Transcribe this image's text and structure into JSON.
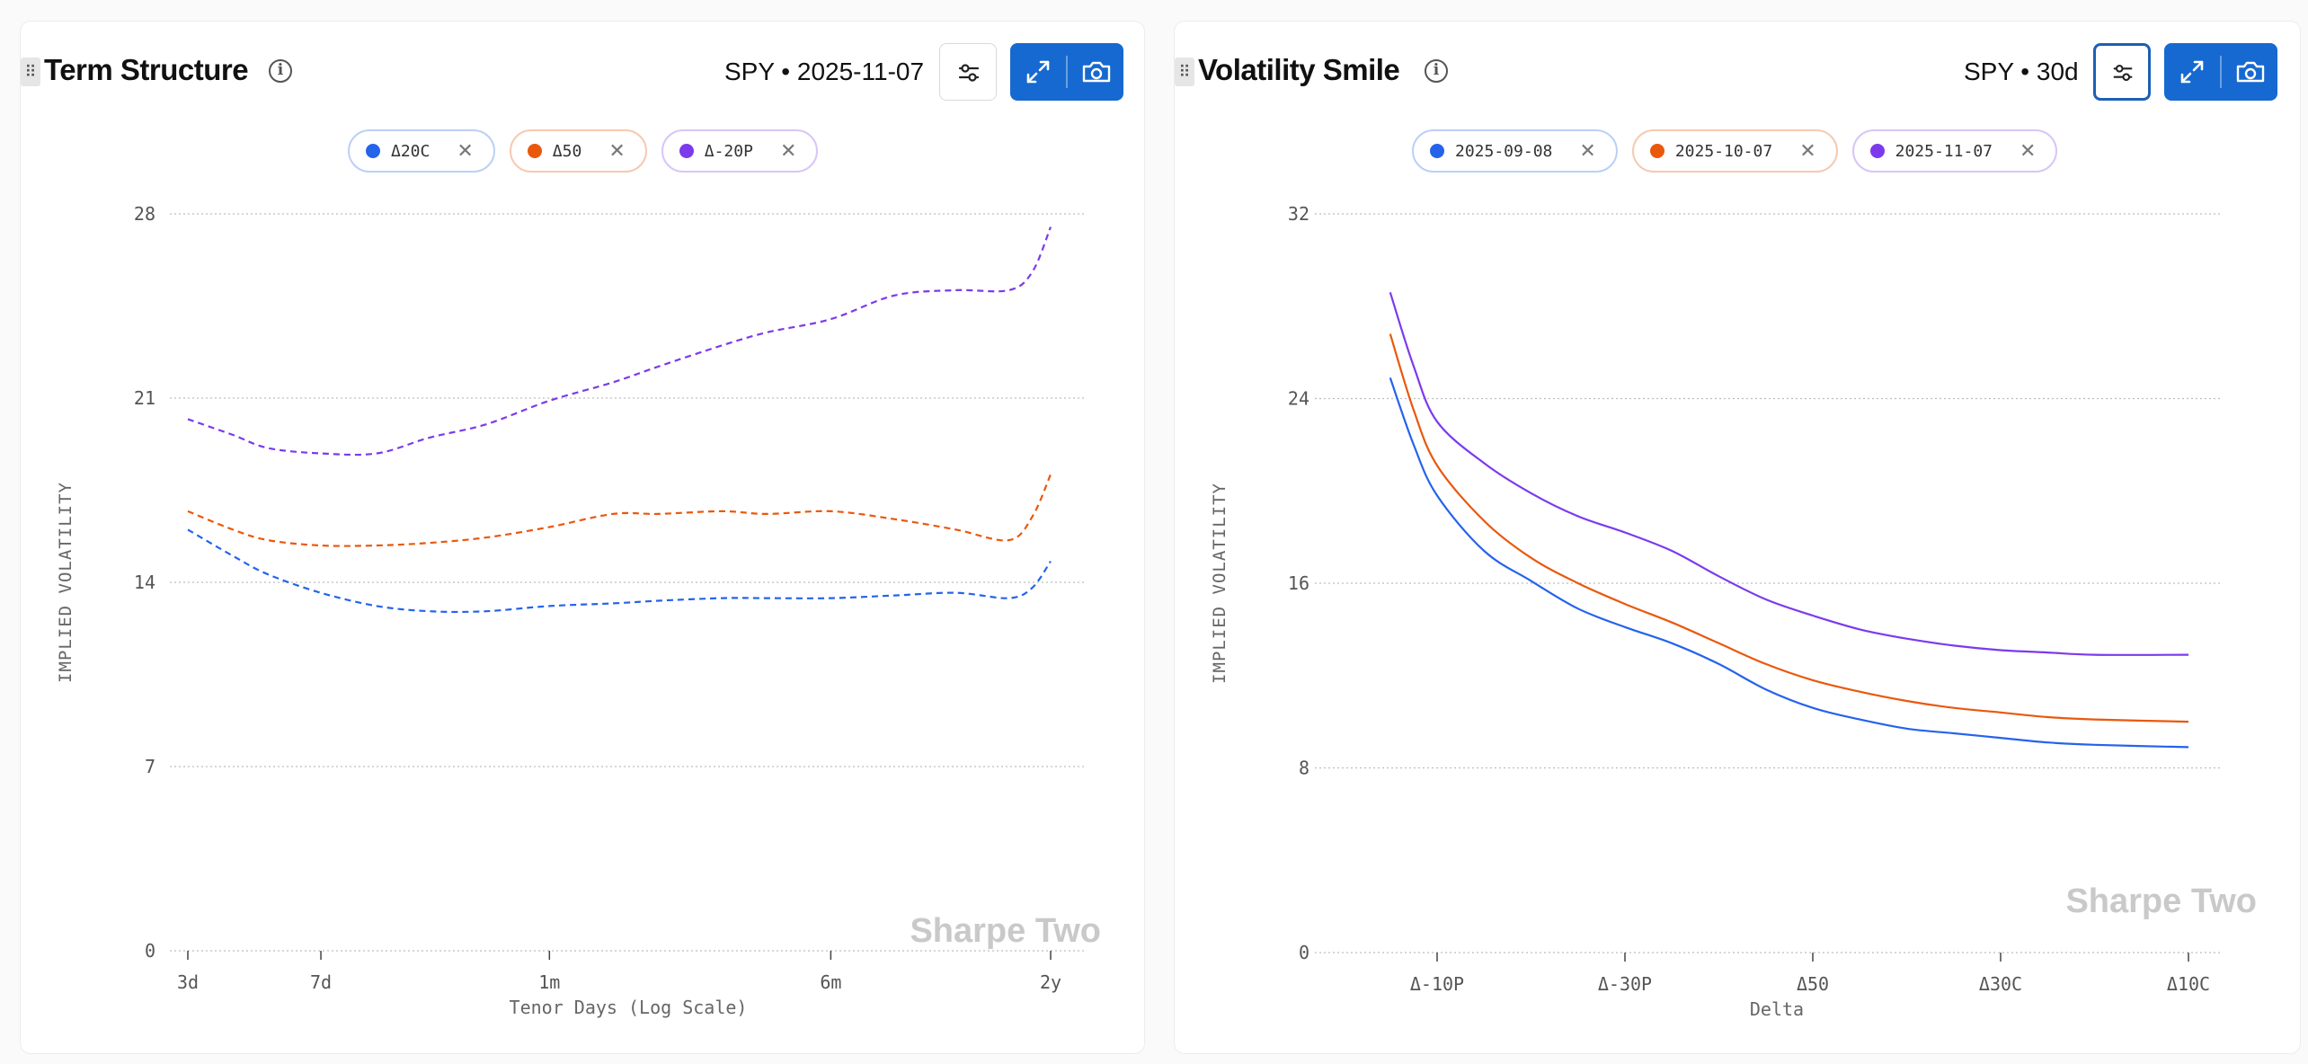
{
  "left_panel": {
    "title": "Term Structure",
    "ticker_label": "SPY • 2025-11-07",
    "legend": [
      {
        "label": "Δ20C",
        "color": "#2563eb"
      },
      {
        "label": "Δ50",
        "color": "#ea580c"
      },
      {
        "label": "Δ-20P",
        "color": "#7c3aed"
      }
    ],
    "watermark": "Sharpe Two"
  },
  "right_panel": {
    "title": "Volatility Smile",
    "ticker_label": "SPY • 30d",
    "legend": [
      {
        "label": "2025-09-08",
        "color": "#2563eb"
      },
      {
        "label": "2025-10-07",
        "color": "#ea580c"
      },
      {
        "label": "2025-11-07",
        "color": "#7c3aed"
      }
    ],
    "watermark": "Sharpe Two"
  },
  "chart_data": [
    {
      "type": "line",
      "title": "Term Structure",
      "xlabel": "Tenor Days (Log Scale)",
      "ylabel": "IMPLIED VOLATILITY",
      "x_scale": "log",
      "x_range": [
        3,
        730
      ],
      "x_ticks": [
        {
          "value": 3,
          "label": "3d"
        },
        {
          "value": 7,
          "label": "7d"
        },
        {
          "value": 30,
          "label": "1m"
        },
        {
          "value": 180,
          "label": "6m"
        },
        {
          "value": 730,
          "label": "2y"
        }
      ],
      "ylim": [
        0,
        28
      ],
      "y_ticks": [
        0,
        7,
        14,
        21,
        28
      ],
      "grid": true,
      "line_style": "dashed",
      "x": [
        3,
        4,
        5,
        7,
        10,
        14,
        20,
        30,
        45,
        60,
        90,
        120,
        180,
        270,
        400,
        560,
        650,
        730
      ],
      "series": [
        {
          "name": "Δ20C",
          "color": "#2563eb",
          "values": [
            16.0,
            15.0,
            14.3,
            13.6,
            13.1,
            12.9,
            12.9,
            13.1,
            13.2,
            13.3,
            13.4,
            13.4,
            13.4,
            13.5,
            13.6,
            13.4,
            13.8,
            14.8
          ]
        },
        {
          "name": "Δ50",
          "color": "#ea580c",
          "values": [
            16.7,
            16.0,
            15.6,
            15.4,
            15.4,
            15.5,
            15.7,
            16.1,
            16.6,
            16.6,
            16.7,
            16.6,
            16.7,
            16.4,
            16.0,
            15.6,
            16.5,
            18.1
          ]
        },
        {
          "name": "Δ-20P",
          "color": "#7c3aed",
          "values": [
            20.2,
            19.6,
            19.1,
            18.9,
            18.9,
            19.5,
            20.0,
            20.9,
            21.6,
            22.2,
            23.0,
            23.5,
            24.0,
            24.9,
            25.1,
            25.1,
            25.8,
            27.5
          ]
        }
      ]
    },
    {
      "type": "line",
      "title": "Volatility Smile",
      "xlabel": "Delta",
      "ylabel": "IMPLIED VOLATILITY",
      "x_range": [
        0,
        4
      ],
      "x_ticks": [
        {
          "value": 0,
          "label": "Δ-10P"
        },
        {
          "value": 1,
          "label": "Δ-30P"
        },
        {
          "value": 2,
          "label": "Δ50"
        },
        {
          "value": 3,
          "label": "Δ30C"
        },
        {
          "value": 4,
          "label": "Δ10C"
        }
      ],
      "ylim": [
        0,
        32
      ],
      "y_ticks": [
        0,
        8,
        16,
        24,
        32
      ],
      "grid": true,
      "line_style": "solid",
      "x": [
        -0.25,
        -0.125,
        0,
        0.25,
        0.5,
        0.75,
        1.0,
        1.25,
        1.5,
        1.75,
        2.0,
        2.25,
        2.5,
        2.75,
        3.0,
        3.25,
        3.5,
        4.0
      ],
      "series": [
        {
          "name": "2025-09-08",
          "color": "#2563eb",
          "values": [
            24.9,
            22.0,
            19.8,
            17.4,
            16.1,
            14.9,
            14.1,
            13.4,
            12.5,
            11.4,
            10.6,
            10.1,
            9.7,
            9.5,
            9.3,
            9.1,
            9.0,
            8.9
          ]
        },
        {
          "name": "2025-10-07",
          "color": "#ea580c",
          "values": [
            26.8,
            23.5,
            21.1,
            18.7,
            17.1,
            16.0,
            15.1,
            14.3,
            13.4,
            12.5,
            11.8,
            11.3,
            10.9,
            10.6,
            10.4,
            10.2,
            10.1,
            10.0
          ]
        },
        {
          "name": "2025-11-07",
          "color": "#7c3aed",
          "values": [
            28.6,
            25.4,
            23.0,
            21.2,
            19.9,
            18.9,
            18.2,
            17.4,
            16.3,
            15.3,
            14.6,
            14.0,
            13.6,
            13.3,
            13.1,
            13.0,
            12.9,
            12.9
          ]
        }
      ]
    }
  ]
}
